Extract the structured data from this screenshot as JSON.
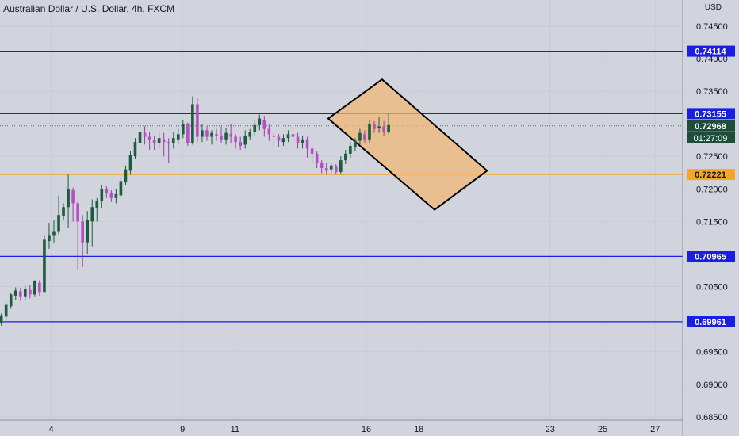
{
  "chart": {
    "title": "Australian Dollar / U.S. Dollar, 4h, FXCM",
    "currency": "USD"
  },
  "chart_data": {
    "type": "candlestick",
    "instrument": "AUDUSD",
    "timeframe": "4h",
    "source": "FXCM",
    "ylim": [
      0.6845,
      0.749
    ],
    "y_ticks": [
      "0.74500",
      "0.74000",
      "0.73500",
      "0.73000",
      "0.72500",
      "0.72000",
      "0.71500",
      "0.71000",
      "0.70500",
      "0.70000",
      "0.69500",
      "0.69000",
      "0.68500"
    ],
    "x_ticks": [
      {
        "label": "4",
        "day": 4
      },
      {
        "label": "9",
        "day": 9
      },
      {
        "label": "11",
        "day": 11
      },
      {
        "label": "16",
        "day": 16
      },
      {
        "label": "18",
        "day": 18
      },
      {
        "label": "23",
        "day": 23
      },
      {
        "label": "25",
        "day": 25
      },
      {
        "label": "27",
        "day": 27
      }
    ],
    "date_axis": {
      "day_at_left_edge": 2.05,
      "days_per_width": 26.0
    },
    "horizontal_lines": [
      {
        "price": 0.74114,
        "label": "0.74114",
        "color": "#1a1ee0"
      },
      {
        "price": 0.73155,
        "label": "0.73155",
        "color": "#1a1ee0"
      },
      {
        "price": 0.72221,
        "label": "0.72221",
        "color": "#f5a623"
      },
      {
        "price": 0.70965,
        "label": "0.70965",
        "color": "#1a1ee0"
      },
      {
        "price": 0.69961,
        "label": "0.69961",
        "color": "#1a1ee0"
      }
    ],
    "current_price": {
      "price": 0.72968,
      "label": "0.72968",
      "countdown": "01:27:09"
    },
    "shape": {
      "type": "rectangle",
      "fill": "#f0b878",
      "points": [
        [
          14.55,
          0.7308
        ],
        [
          16.6,
          0.7368
        ],
        [
          20.6,
          0.7228
        ],
        [
          18.6,
          0.7168
        ]
      ]
    },
    "candles": [
      [
        0.6994,
        0.7006,
        0.699,
        0.7009
      ],
      [
        0.7004,
        0.7022,
        0.6998,
        0.7026
      ],
      [
        0.702,
        0.7038,
        0.7016,
        0.7041
      ],
      [
        0.7036,
        0.7044,
        0.703,
        0.7049
      ],
      [
        0.7043,
        0.7034,
        0.7028,
        0.7048
      ],
      [
        0.7034,
        0.7046,
        0.703,
        0.7051
      ],
      [
        0.7045,
        0.7038,
        0.7032,
        0.7052
      ],
      [
        0.7038,
        0.7058,
        0.7034,
        0.706
      ],
      [
        0.7056,
        0.7042,
        0.7036,
        0.706
      ],
      [
        0.7042,
        0.7122,
        0.704,
        0.7128
      ],
      [
        0.712,
        0.7128,
        0.7108,
        0.7148
      ],
      [
        0.7128,
        0.7134,
        0.7118,
        0.7152
      ],
      [
        0.7134,
        0.716,
        0.713,
        0.719
      ],
      [
        0.7158,
        0.7172,
        0.7152,
        0.7178
      ],
      [
        0.7172,
        0.72,
        0.714,
        0.7222
      ],
      [
        0.7198,
        0.7178,
        0.715,
        0.7202
      ],
      [
        0.7178,
        0.715,
        0.7075,
        0.7182
      ],
      [
        0.715,
        0.7118,
        0.708,
        0.716
      ],
      [
        0.7118,
        0.7152,
        0.71,
        0.7166
      ],
      [
        0.715,
        0.7172,
        0.7112,
        0.7184
      ],
      [
        0.717,
        0.7182,
        0.715,
        0.7186
      ],
      [
        0.7182,
        0.72,
        0.717,
        0.7206
      ],
      [
        0.72,
        0.7194,
        0.7186,
        0.7204
      ],
      [
        0.7194,
        0.7186,
        0.718,
        0.7198
      ],
      [
        0.7186,
        0.7192,
        0.7178,
        0.72
      ],
      [
        0.719,
        0.7212,
        0.7186,
        0.7216
      ],
      [
        0.721,
        0.723,
        0.7206,
        0.7236
      ],
      [
        0.7228,
        0.7252,
        0.7222,
        0.7258
      ],
      [
        0.725,
        0.7272,
        0.7246,
        0.7278
      ],
      [
        0.727,
        0.7288,
        0.7264,
        0.7292
      ],
      [
        0.7286,
        0.728,
        0.7268,
        0.7296
      ],
      [
        0.728,
        0.7276,
        0.726,
        0.7288
      ],
      [
        0.7276,
        0.727,
        0.726,
        0.7282
      ],
      [
        0.727,
        0.7278,
        0.7262,
        0.7288
      ],
      [
        0.7276,
        0.7272,
        0.725,
        0.7286
      ],
      [
        0.7272,
        0.727,
        0.724,
        0.7278
      ],
      [
        0.727,
        0.7278,
        0.7262,
        0.7288
      ],
      [
        0.7276,
        0.7284,
        0.7268,
        0.7294
      ],
      [
        0.7284,
        0.73,
        0.7278,
        0.7306
      ],
      [
        0.73,
        0.727,
        0.7266,
        0.7302
      ],
      [
        0.727,
        0.733,
        0.7268,
        0.7342
      ],
      [
        0.733,
        0.728,
        0.7272,
        0.734
      ],
      [
        0.728,
        0.729,
        0.7272,
        0.73
      ],
      [
        0.729,
        0.728,
        0.7274,
        0.7296
      ],
      [
        0.728,
        0.7286,
        0.7268,
        0.729
      ],
      [
        0.7284,
        0.7282,
        0.7274,
        0.7292
      ],
      [
        0.7282,
        0.7276,
        0.727,
        0.7296
      ],
      [
        0.7276,
        0.7286,
        0.7268,
        0.7294
      ],
      [
        0.7284,
        0.728,
        0.727,
        0.73
      ],
      [
        0.728,
        0.7272,
        0.7262,
        0.7284
      ],
      [
        0.7272,
        0.7266,
        0.726,
        0.728
      ],
      [
        0.7268,
        0.7282,
        0.7262,
        0.729
      ],
      [
        0.728,
        0.7288,
        0.7276,
        0.7292
      ],
      [
        0.7288,
        0.7298,
        0.7282,
        0.7306
      ],
      [
        0.7298,
        0.7308,
        0.729,
        0.7314
      ],
      [
        0.7306,
        0.7292,
        0.728,
        0.7312
      ],
      [
        0.7292,
        0.7284,
        0.7274,
        0.73
      ],
      [
        0.7282,
        0.728,
        0.7264,
        0.7286
      ],
      [
        0.728,
        0.7274,
        0.7264,
        0.7284
      ],
      [
        0.7272,
        0.7278,
        0.7266,
        0.7284
      ],
      [
        0.7278,
        0.7284,
        0.7272,
        0.729
      ],
      [
        0.7284,
        0.728,
        0.727,
        0.7292
      ],
      [
        0.728,
        0.727,
        0.7262,
        0.7286
      ],
      [
        0.727,
        0.7276,
        0.7262,
        0.7282
      ],
      [
        0.7276,
        0.7262,
        0.7248,
        0.728
      ],
      [
        0.7262,
        0.7254,
        0.724,
        0.7266
      ],
      [
        0.7254,
        0.724,
        0.7232,
        0.7258
      ],
      [
        0.724,
        0.7232,
        0.7224,
        0.7244
      ],
      [
        0.7232,
        0.7228,
        0.7222,
        0.724
      ],
      [
        0.723,
        0.7236,
        0.7224,
        0.724
      ],
      [
        0.7234,
        0.7226,
        0.7222,
        0.7238
      ],
      [
        0.7226,
        0.7244,
        0.7222,
        0.725
      ],
      [
        0.7244,
        0.7254,
        0.7238,
        0.726
      ],
      [
        0.7254,
        0.7266,
        0.7248,
        0.7272
      ],
      [
        0.7264,
        0.7274,
        0.7258,
        0.7278
      ],
      [
        0.7274,
        0.7286,
        0.7268,
        0.7292
      ],
      [
        0.7284,
        0.7276,
        0.727,
        0.729
      ],
      [
        0.7276,
        0.73,
        0.727,
        0.7306
      ],
      [
        0.73,
        0.7292,
        0.7286,
        0.7304
      ],
      [
        0.7294,
        0.7296,
        0.7286,
        0.731
      ],
      [
        0.7296,
        0.7288,
        0.7282,
        0.7304
      ],
      [
        0.7288,
        0.7298,
        0.7284,
        0.7316
      ]
    ]
  }
}
